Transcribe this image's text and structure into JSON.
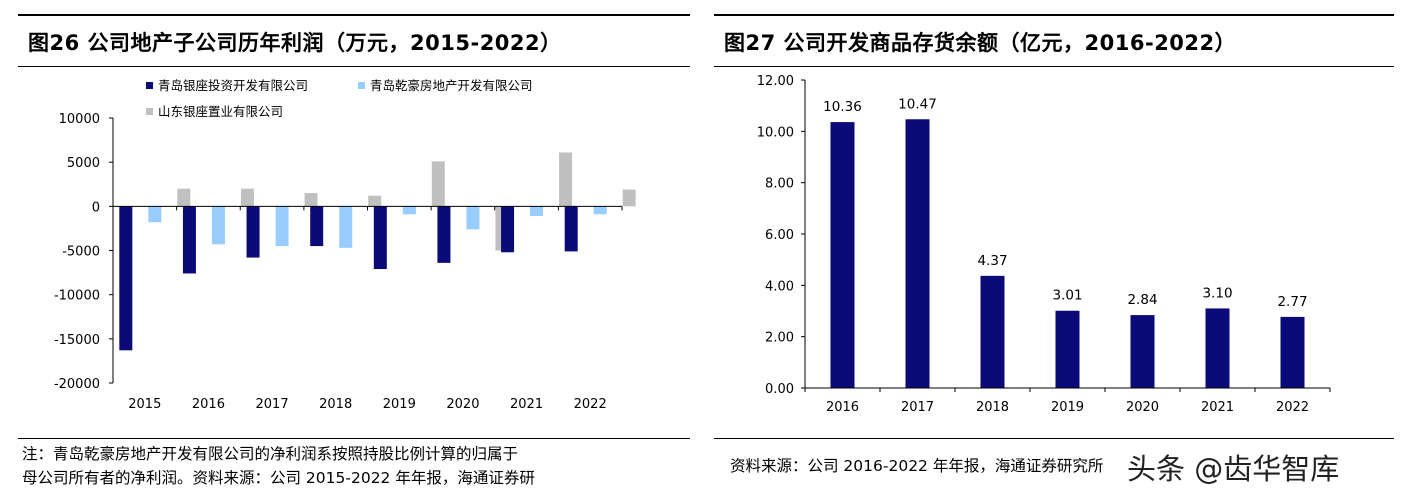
{
  "left": {
    "title": "图26 公司地产子公司历年利润（万元，2015-2022）",
    "note_line1": "注：青岛乾豪房地产开发有限公司的净利润系按照持股比例计算的归属于",
    "note_line2": "母公司所有者的净利润。资料来源：公司 2015-2022 年年报，海通证券研"
  },
  "right": {
    "title": "图27 公司开发商品存货余额（亿元，2016-2022）",
    "note": "资料来源：公司 2016-2022 年年报，海通证券研究所"
  },
  "watermark": "头条 @齿华智库",
  "chart_data": [
    {
      "type": "bar",
      "title": "图26 公司地产子公司历年利润（万元，2015-2022）",
      "categories": [
        "2015",
        "2016",
        "2017",
        "2018",
        "2019",
        "2020",
        "2021",
        "2022"
      ],
      "series": [
        {
          "name": "青岛银座投资开发有限公司",
          "color": "#0a0a78",
          "values": [
            -16300,
            -7600,
            -5800,
            -4500,
            -7100,
            -6400,
            -5200,
            -5100
          ]
        },
        {
          "name": "青岛乾豪房地产开发有限公司",
          "color": "#99ccff",
          "values": [
            -1800,
            -4300,
            -4500,
            -4700,
            -900,
            -2600,
            -1100,
            -900
          ]
        },
        {
          "name": "山东银座置业有限公司",
          "color": "#c0c0c0",
          "values": [
            2000,
            2000,
            1500,
            1200,
            5100,
            -5000,
            6100,
            1900
          ]
        }
      ],
      "yticks": [
        "10000",
        "5000",
        "0",
        "-5000",
        "-10000",
        "-15000",
        "-20000"
      ],
      "ylim": [
        -20000,
        10000
      ],
      "legend_position": "top-left"
    },
    {
      "type": "bar",
      "title": "图27 公司开发商品存货余额（亿元，2016-2022）",
      "categories": [
        "2016",
        "2017",
        "2018",
        "2019",
        "2020",
        "2021",
        "2022"
      ],
      "values": [
        10.36,
        10.47,
        4.37,
        3.01,
        2.84,
        3.1,
        2.77
      ],
      "value_labels": [
        "10.36",
        "10.47",
        "4.37",
        "3.01",
        "2.84",
        "3.10",
        "2.77"
      ],
      "color": "#0a0a78",
      "yticks": [
        "12.00",
        "10.00",
        "8.00",
        "6.00",
        "4.00",
        "2.00",
        "0.00"
      ],
      "ylim": [
        0,
        12
      ]
    }
  ]
}
